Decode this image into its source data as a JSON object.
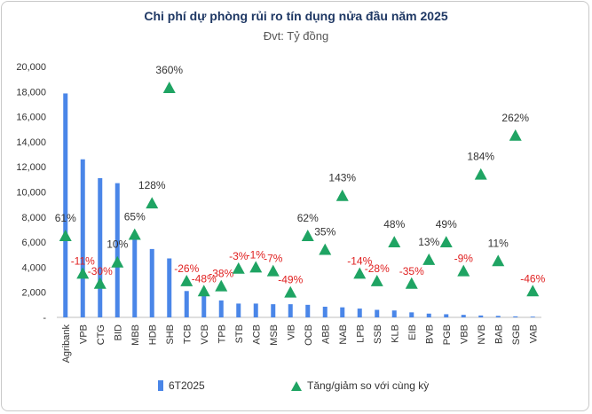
{
  "chart_data": {
    "type": "bar",
    "title": "Chi phí dự phòng rủi ro tín dụng nửa đầu năm 2025",
    "subtitle": "Đvt: Tỷ đồng",
    "categories": [
      "Agribank",
      "VPB",
      "CTG",
      "BID",
      "MBB",
      "HDB",
      "SHB",
      "TCB",
      "VCB",
      "TPB",
      "STB",
      "ACB",
      "MSB",
      "VIB",
      "OCB",
      "ABB",
      "NAB",
      "LPB",
      "SSB",
      "KLB",
      "EIB",
      "BVB",
      "PGB",
      "VBB",
      "NVB",
      "BAB",
      "SGB",
      "VAB"
    ],
    "ylim": [
      0,
      20000
    ],
    "yticks": [
      "-",
      "2,000",
      "4,000",
      "6,000",
      "8,000",
      "10,000",
      "12,000",
      "14,000",
      "16,000",
      "18,000",
      "20,000"
    ],
    "series": [
      {
        "name": "6T2025",
        "type": "bar",
        "color": "#4a86e8",
        "values": [
          17850,
          12600,
          11100,
          10700,
          6400,
          5450,
          4700,
          2100,
          2000,
          1350,
          1100,
          1100,
          1050,
          1050,
          1000,
          850,
          800,
          700,
          600,
          550,
          400,
          300,
          250,
          200,
          150,
          120,
          80,
          60
        ]
      },
      {
        "name": "Tăng/giảm so với cùng kỳ",
        "type": "marker",
        "color": "#1fa463",
        "values": [
          6500,
          3500,
          2700,
          4400,
          6600,
          9100,
          18300,
          2900,
          2100,
          2500,
          3900,
          4000,
          3700,
          2000,
          6500,
          5400,
          9700,
          3500,
          2900,
          6000,
          2700,
          4600,
          6000,
          3700,
          11400,
          4500,
          14500,
          2100
        ],
        "labels": [
          "61%",
          "-11%",
          "-30%",
          "10%",
          "65%",
          "128%",
          "360%",
          "-26%",
          "-48%",
          "-38%",
          "-3%",
          "-1%",
          "-7%",
          "-49%",
          "62%",
          "35%",
          "143%",
          "-14%",
          "-28%",
          "48%",
          "-35%",
          "13%",
          "49%",
          "-9%",
          "184%",
          "11%",
          "262%",
          "-46%"
        ]
      }
    ],
    "grid": false,
    "legend_position": "bottom"
  },
  "legend": {
    "bar_label": "6T2025",
    "marker_label": "Tăng/giảm so với cùng kỳ"
  },
  "colors": {
    "bar": "#4a86e8",
    "marker": "#1fa463",
    "positive_label": "#333333",
    "negative_label": "#e02020",
    "title": "#1f3864"
  }
}
